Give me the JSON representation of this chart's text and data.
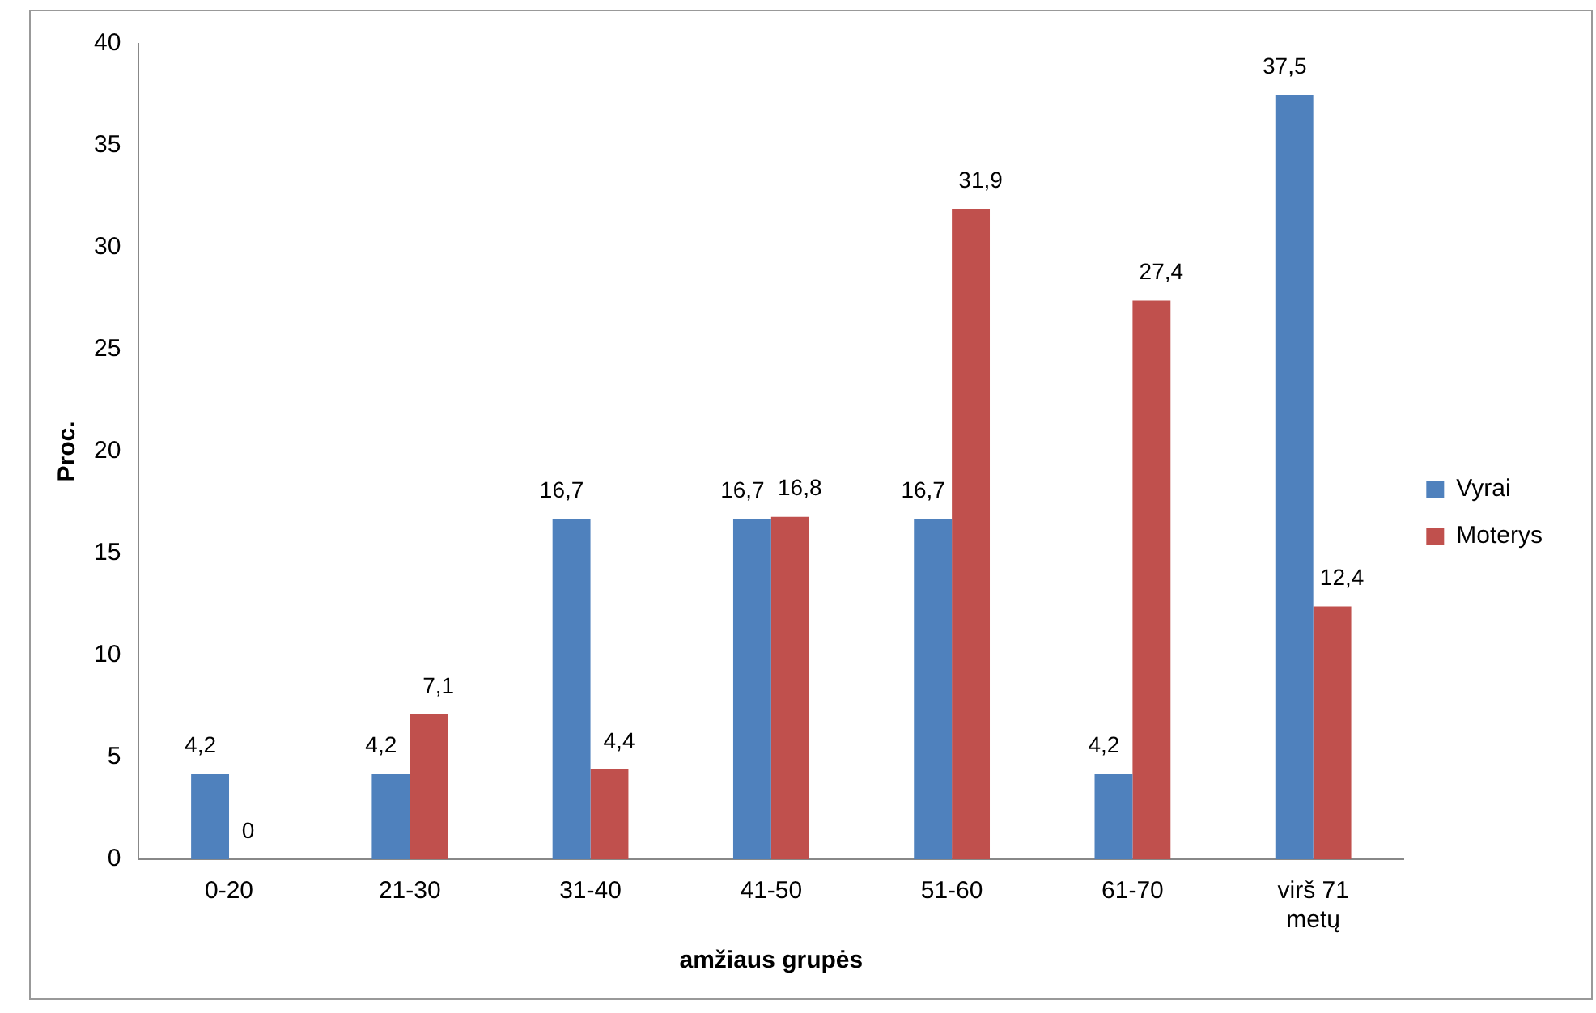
{
  "chart_data": {
    "type": "bar",
    "xlabel": "amžiaus grupės",
    "ylabel": "Proc.",
    "categories": [
      "0-20",
      "21-30",
      "31-40",
      "41-50",
      "51-60",
      "61-70",
      "virš 71 metų"
    ],
    "series": [
      {
        "name": "Vyrai",
        "color": "#4f81bd",
        "values": [
          4.2,
          4.2,
          16.7,
          16.7,
          16.7,
          4.2,
          37.5
        ],
        "value_labels": [
          "4,2",
          "4,2",
          "16,7",
          "16,7",
          "16,7",
          "4,2",
          "37,5"
        ]
      },
      {
        "name": "Moterys",
        "color": "#c0504d",
        "values": [
          0,
          7.1,
          4.4,
          16.8,
          31.9,
          27.4,
          12.4
        ],
        "value_labels": [
          "0",
          "7,1",
          "4,4",
          "16,8",
          "31,9",
          "27,4",
          "12,4"
        ]
      }
    ],
    "ylim": [
      0,
      40
    ],
    "yticks": [
      0,
      5,
      10,
      15,
      20,
      25,
      30,
      35,
      40
    ],
    "grid": false,
    "legend": "right"
  }
}
